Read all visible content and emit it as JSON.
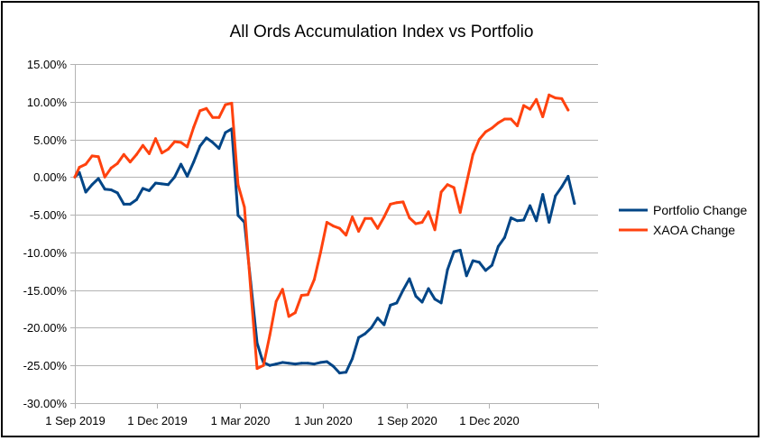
{
  "chart_data": {
    "type": "line",
    "title": "All Ords Accumulation Index vs Portfolio",
    "xlabel": "",
    "ylabel": "",
    "x_start": "2019-09-01",
    "x_end": "2021-03-31",
    "x_ticks": [
      {
        "label": "1 Sep 2019",
        "date": "2019-09-01"
      },
      {
        "label": "1 Dec 2019",
        "date": "2019-12-01"
      },
      {
        "label": "1 Mar 2020",
        "date": "2020-03-01"
      },
      {
        "label": "1 Jun 2020",
        "date": "2020-06-01"
      },
      {
        "label": "1 Sep 2020",
        "date": "2020-09-01"
      },
      {
        "label": "1 Dec 2020",
        "date": "2020-12-01"
      }
    ],
    "ylim": [
      -30,
      15
    ],
    "y_ticks": [
      {
        "label": "15.00%",
        "value": 15
      },
      {
        "label": "10.00%",
        "value": 10
      },
      {
        "label": "5.00%",
        "value": 5
      },
      {
        "label": "0.00%",
        "value": 0
      },
      {
        "label": "-5.00%",
        "value": -5
      },
      {
        "label": "-10.00%",
        "value": -10
      },
      {
        "label": "-15.00%",
        "value": -15
      },
      {
        "label": "-20.00%",
        "value": -20
      },
      {
        "label": "-25.00%",
        "value": -25
      },
      {
        "label": "-30.00%",
        "value": -30
      }
    ],
    "grid": true,
    "legend_position": "right",
    "series": [
      {
        "name": "Portfolio Change",
        "color": "#004586",
        "points": [
          [
            "2019-09-01",
            0.0
          ],
          [
            "2019-09-06",
            0.6
          ],
          [
            "2019-09-13",
            -2.0
          ],
          [
            "2019-09-20",
            -1.0
          ],
          [
            "2019-09-27",
            -0.2
          ],
          [
            "2019-10-04",
            -1.6
          ],
          [
            "2019-10-11",
            -1.7
          ],
          [
            "2019-10-18",
            -2.1
          ],
          [
            "2019-10-25",
            -3.6
          ],
          [
            "2019-11-01",
            -3.6
          ],
          [
            "2019-11-08",
            -3.0
          ],
          [
            "2019-11-15",
            -1.5
          ],
          [
            "2019-11-22",
            -1.8
          ],
          [
            "2019-11-29",
            -0.8
          ],
          [
            "2019-12-06",
            -0.9
          ],
          [
            "2019-12-13",
            -1.0
          ],
          [
            "2019-12-20",
            0.0
          ],
          [
            "2019-12-27",
            1.7
          ],
          [
            "2020-01-03",
            0.1
          ],
          [
            "2020-01-10",
            2.0
          ],
          [
            "2020-01-17",
            4.1
          ],
          [
            "2020-01-24",
            5.2
          ],
          [
            "2020-01-31",
            4.6
          ],
          [
            "2020-02-07",
            3.8
          ],
          [
            "2020-02-14",
            5.9
          ],
          [
            "2020-02-21",
            6.4
          ],
          [
            "2020-02-28",
            -5.1
          ],
          [
            "2020-03-06",
            -6.0
          ],
          [
            "2020-03-13",
            -14.0
          ],
          [
            "2020-03-20",
            -22.0
          ],
          [
            "2020-03-25",
            -24.0
          ],
          [
            "2020-03-27",
            -24.6
          ],
          [
            "2020-04-03",
            -25.0
          ],
          [
            "2020-04-10",
            -24.8
          ],
          [
            "2020-04-17",
            -24.6
          ],
          [
            "2020-04-24",
            -24.7
          ],
          [
            "2020-05-01",
            -24.8
          ],
          [
            "2020-05-08",
            -24.7
          ],
          [
            "2020-05-15",
            -24.7
          ],
          [
            "2020-05-22",
            -24.8
          ],
          [
            "2020-05-29",
            -24.6
          ],
          [
            "2020-06-05",
            -24.5
          ],
          [
            "2020-06-12",
            -25.1
          ],
          [
            "2020-06-19",
            -26.0
          ],
          [
            "2020-06-26",
            -25.9
          ],
          [
            "2020-07-03",
            -24.1
          ],
          [
            "2020-07-10",
            -21.3
          ],
          [
            "2020-07-17",
            -20.8
          ],
          [
            "2020-07-24",
            -20.0
          ],
          [
            "2020-07-31",
            -18.7
          ],
          [
            "2020-08-07",
            -19.6
          ],
          [
            "2020-08-14",
            -17.0
          ],
          [
            "2020-08-21",
            -16.7
          ],
          [
            "2020-08-28",
            -15.0
          ],
          [
            "2020-09-04",
            -13.5
          ],
          [
            "2020-09-11",
            -15.8
          ],
          [
            "2020-09-18",
            -16.6
          ],
          [
            "2020-09-25",
            -14.8
          ],
          [
            "2020-10-02",
            -16.2
          ],
          [
            "2020-10-09",
            -16.7
          ],
          [
            "2020-10-16",
            -12.3
          ],
          [
            "2020-10-23",
            -9.9
          ],
          [
            "2020-10-30",
            -9.7
          ],
          [
            "2020-11-06",
            -13.1
          ],
          [
            "2020-11-13",
            -11.1
          ],
          [
            "2020-11-20",
            -11.3
          ],
          [
            "2020-11-27",
            -12.4
          ],
          [
            "2020-12-04",
            -11.7
          ],
          [
            "2020-12-11",
            -9.2
          ],
          [
            "2020-12-18",
            -8.0
          ],
          [
            "2020-12-25",
            -5.4
          ],
          [
            "2021-01-01",
            -5.8
          ],
          [
            "2021-01-08",
            -5.7
          ],
          [
            "2021-01-15",
            -3.8
          ],
          [
            "2021-01-22",
            -5.8
          ],
          [
            "2021-01-29",
            -2.3
          ],
          [
            "2021-02-05",
            -6.0
          ],
          [
            "2021-02-12",
            -2.5
          ],
          [
            "2021-02-19",
            -1.3
          ],
          [
            "2021-02-26",
            0.1
          ],
          [
            "2021-03-05",
            -3.5
          ]
        ]
      },
      {
        "name": "XAOA Change",
        "color": "#ff420e",
        "points": [
          [
            "2019-09-01",
            0.0
          ],
          [
            "2019-09-06",
            1.3
          ],
          [
            "2019-09-13",
            1.7
          ],
          [
            "2019-09-20",
            2.8
          ],
          [
            "2019-09-27",
            2.7
          ],
          [
            "2019-10-04",
            0.0
          ],
          [
            "2019-10-11",
            1.2
          ],
          [
            "2019-10-18",
            1.8
          ],
          [
            "2019-10-25",
            3.0
          ],
          [
            "2019-11-01",
            2.0
          ],
          [
            "2019-11-08",
            3.0
          ],
          [
            "2019-11-15",
            4.2
          ],
          [
            "2019-11-22",
            3.1
          ],
          [
            "2019-11-29",
            5.1
          ],
          [
            "2019-12-06",
            3.2
          ],
          [
            "2019-12-13",
            3.7
          ],
          [
            "2019-12-20",
            4.7
          ],
          [
            "2019-12-27",
            4.6
          ],
          [
            "2020-01-03",
            4.0
          ],
          [
            "2020-01-10",
            6.6
          ],
          [
            "2020-01-17",
            8.8
          ],
          [
            "2020-01-24",
            9.1
          ],
          [
            "2020-01-31",
            7.9
          ],
          [
            "2020-02-07",
            7.9
          ],
          [
            "2020-02-14",
            9.6
          ],
          [
            "2020-02-21",
            9.8
          ],
          [
            "2020-02-28",
            -1.0
          ],
          [
            "2020-03-06",
            -4.0
          ],
          [
            "2020-03-13",
            -15.0
          ],
          [
            "2020-03-20",
            -25.4
          ],
          [
            "2020-03-27",
            -25.0
          ],
          [
            "2020-04-03",
            -21.0
          ],
          [
            "2020-04-10",
            -16.5
          ],
          [
            "2020-04-17",
            -14.9
          ],
          [
            "2020-04-24",
            -18.5
          ],
          [
            "2020-05-01",
            -18.0
          ],
          [
            "2020-05-08",
            -15.7
          ],
          [
            "2020-05-15",
            -15.6
          ],
          [
            "2020-05-22",
            -13.6
          ],
          [
            "2020-05-29",
            -10.0
          ],
          [
            "2020-06-05",
            -6.0
          ],
          [
            "2020-06-12",
            -6.5
          ],
          [
            "2020-06-19",
            -6.8
          ],
          [
            "2020-06-26",
            -7.7
          ],
          [
            "2020-07-03",
            -5.3
          ],
          [
            "2020-07-10",
            -7.2
          ],
          [
            "2020-07-17",
            -5.5
          ],
          [
            "2020-07-24",
            -5.5
          ],
          [
            "2020-07-31",
            -6.8
          ],
          [
            "2020-08-07",
            -5.3
          ],
          [
            "2020-08-14",
            -3.6
          ],
          [
            "2020-08-21",
            -3.4
          ],
          [
            "2020-08-28",
            -3.3
          ],
          [
            "2020-09-04",
            -5.4
          ],
          [
            "2020-09-11",
            -6.2
          ],
          [
            "2020-09-18",
            -6.0
          ],
          [
            "2020-09-25",
            -4.6
          ],
          [
            "2020-10-02",
            -7.0
          ],
          [
            "2020-10-09",
            -2.0
          ],
          [
            "2020-10-16",
            -1.0
          ],
          [
            "2020-10-23",
            -1.4
          ],
          [
            "2020-10-30",
            -4.7
          ],
          [
            "2020-11-06",
            -0.8
          ],
          [
            "2020-11-13",
            3.0
          ],
          [
            "2020-11-20",
            5.0
          ],
          [
            "2020-11-27",
            6.0
          ],
          [
            "2020-12-04",
            6.5
          ],
          [
            "2020-12-11",
            7.2
          ],
          [
            "2020-12-18",
            7.7
          ],
          [
            "2020-12-25",
            7.7
          ],
          [
            "2021-01-01",
            6.8
          ],
          [
            "2021-01-08",
            9.5
          ],
          [
            "2021-01-15",
            9.0
          ],
          [
            "2021-01-22",
            10.3
          ],
          [
            "2021-01-29",
            8.0
          ],
          [
            "2021-02-05",
            10.9
          ],
          [
            "2021-02-12",
            10.5
          ],
          [
            "2021-02-19",
            10.4
          ],
          [
            "2021-02-26",
            8.9
          ]
        ]
      }
    ]
  }
}
